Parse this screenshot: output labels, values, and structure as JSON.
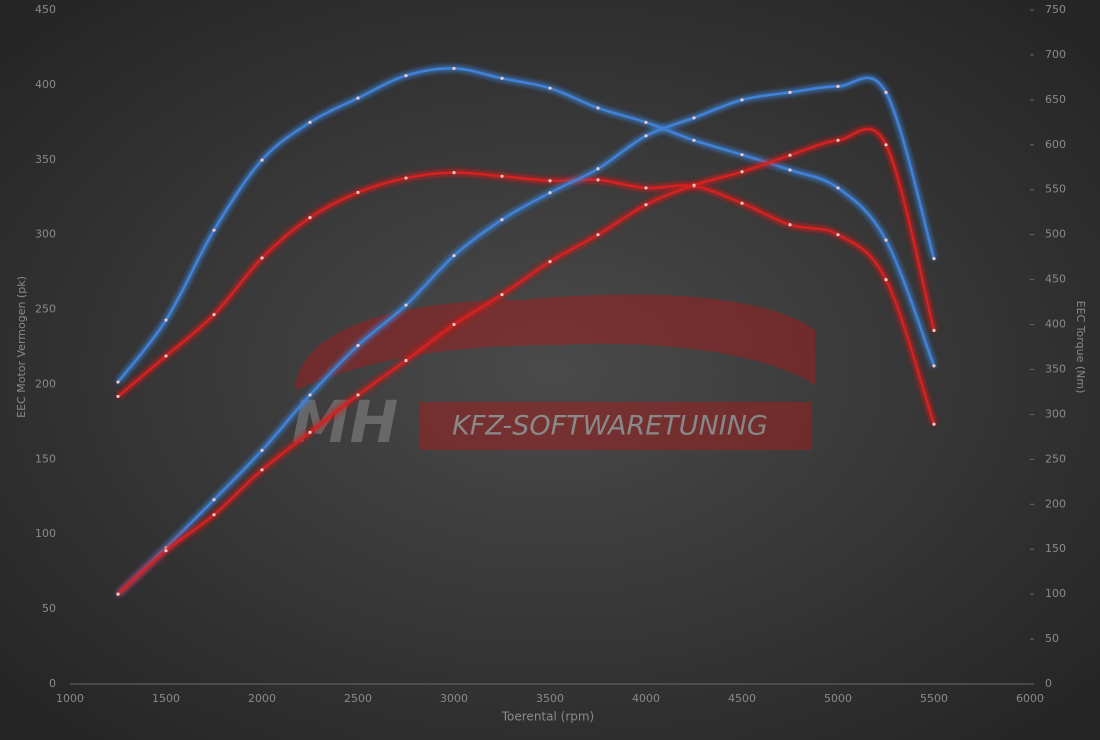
{
  "chart_data": {
    "type": "line",
    "x_label": "Toerental (rpm)",
    "y_label": "EEC Motor Vermogen (pk)",
    "y2_label": "EEC Torque (Nm)",
    "annotations": [
      "MH",
      "KFZ-SOFTWARETUNING"
    ],
    "x": [
      1250,
      1500,
      1750,
      2000,
      2250,
      2500,
      2750,
      3000,
      3250,
      3500,
      3750,
      4000,
      4250,
      4500,
      4750,
      5000,
      5250,
      5500
    ],
    "series": [
      {
        "color": "#3f82d8",
        "axis": "y2",
        "values": [
          336,
          405,
          505,
          583,
          625,
          652,
          677,
          685,
          674,
          663,
          641,
          625,
          605,
          589,
          572,
          552,
          494,
          354
        ]
      },
      {
        "color": "#d42222",
        "axis": "y2",
        "values": [
          320,
          365,
          411,
          474,
          519,
          547,
          563,
          569,
          565,
          560,
          561,
          552,
          554,
          535,
          511,
          500,
          450,
          289
        ]
      },
      {
        "color": "#3f82d8",
        "values": [
          60,
          91,
          123,
          156,
          193,
          226,
          253,
          286,
          310,
          328,
          344,
          366,
          378,
          390,
          395,
          399,
          395,
          284
        ]
      },
      {
        "color": "#d42222",
        "values": [
          60,
          89,
          113,
          143,
          168,
          193,
          216,
          240,
          260,
          282,
          300,
          320,
          333,
          342,
          353,
          363,
          360,
          236
        ]
      }
    ],
    "xlim": [
      1000,
      6000
    ],
    "xticks": [
      1000,
      1500,
      2000,
      2500,
      3000,
      3500,
      4000,
      4500,
      5000,
      5500,
      6000
    ],
    "ylim": [
      0,
      450
    ],
    "yticks": [
      0,
      50,
      100,
      150,
      200,
      250,
      300,
      350,
      400,
      450
    ],
    "y2lim": [
      0,
      750
    ],
    "y2ticks": [
      0,
      50,
      100,
      150,
      200,
      250,
      300,
      350,
      400,
      450,
      500,
      550,
      600,
      650,
      700,
      750
    ],
    "grid": true
  }
}
